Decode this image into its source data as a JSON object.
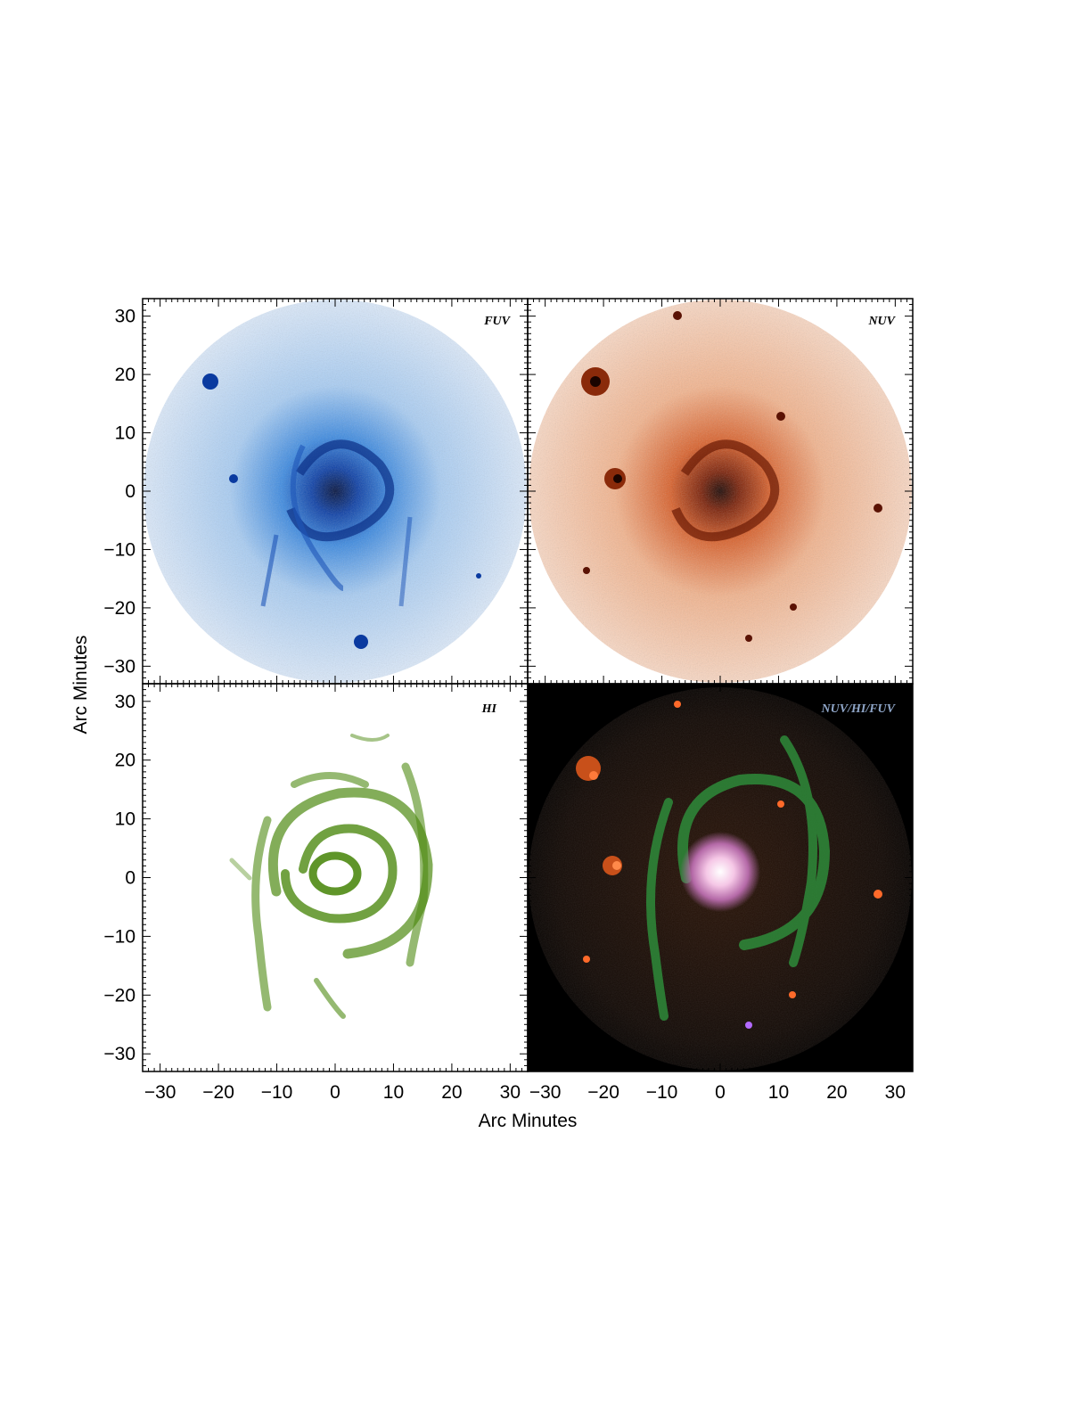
{
  "figure": {
    "xlabel": "Arc Minutes",
    "ylabel": "Arc Minutes",
    "xlim": [
      -33,
      33
    ],
    "ylim": [
      -33,
      33
    ],
    "x_ticks": [
      "−30",
      "−20",
      "−10",
      "0",
      "10",
      "20",
      "30"
    ],
    "y_ticks": [
      "30",
      "20",
      "10",
      "0",
      "−10",
      "−20",
      "−30"
    ],
    "tick_values": [
      -30,
      -20,
      -10,
      0,
      10,
      20,
      30
    ]
  },
  "panels": [
    {
      "id": "fuv",
      "label": "FUV",
      "label_color": "#000000",
      "image_color": "#1f6fd6",
      "background": "#ffffff"
    },
    {
      "id": "nuv",
      "label": "NUV",
      "label_color": "#000000",
      "image_color": "#c8501a",
      "background": "#ffffff"
    },
    {
      "id": "hi",
      "label": "HI",
      "label_color": "#000000",
      "image_color": "#4e8a12",
      "background": "#ffffff"
    },
    {
      "id": "composite",
      "label": "NUV/HI/FUV",
      "label_color": "#8fa6c8",
      "image_color": "#2e8b3a",
      "background": "#000000"
    }
  ]
}
